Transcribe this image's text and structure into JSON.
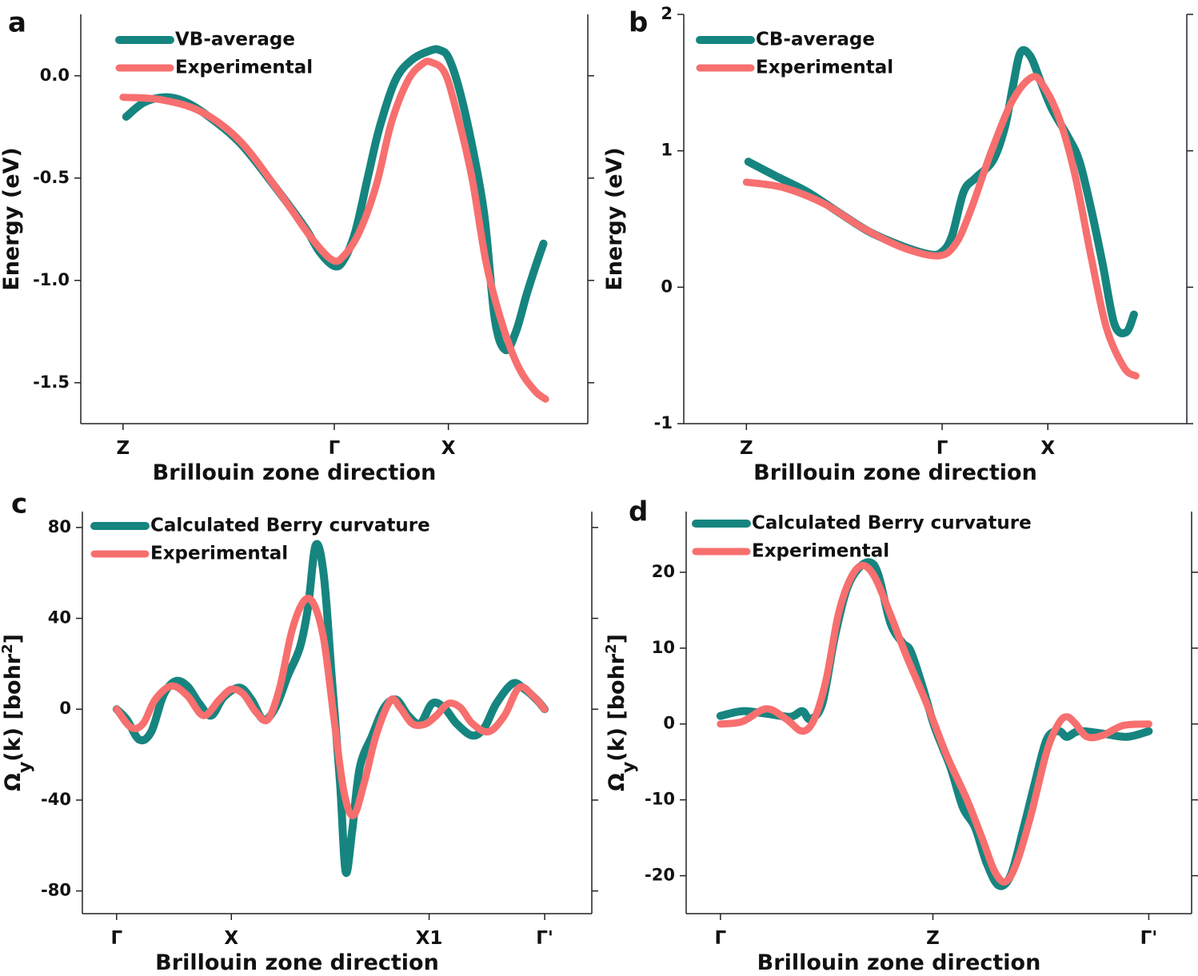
{
  "chart_data": [
    {
      "type": "line",
      "label": "a",
      "xlabel": "Brillouin zone direction",
      "ylabel": "Energy (eV)",
      "xlim": [
        -0.2,
        2.2
      ],
      "ylim": [
        -1.7,
        0.3
      ],
      "xticks": [
        {
          "value": 0,
          "label": "Z"
        },
        {
          "value": 1,
          "label": "Γ"
        },
        {
          "value": 1.54,
          "label": "X"
        }
      ],
      "yticks": [
        -1.5,
        {
          "value": -1.0,
          "label": "-1.0"
        },
        -0.5,
        {
          "value": 0.0,
          "label": "0.0"
        }
      ],
      "legend": "upper left",
      "series": [
        {
          "name": "VB-average",
          "color": "#16857f",
          "x": [
            0.015,
            0.1,
            0.2,
            0.29,
            0.4,
            0.555,
            0.71,
            0.86,
            0.93,
            1.0,
            1.045,
            1.1,
            1.16,
            1.215,
            1.29,
            1.37,
            1.46,
            1.5,
            1.54,
            1.59,
            1.65,
            1.71,
            1.76,
            1.81,
            1.86,
            1.91,
            1.95,
            1.99
          ],
          "values": [
            -0.2,
            -0.13,
            -0.105,
            -0.125,
            -0.195,
            -0.33,
            -0.53,
            -0.74,
            -0.86,
            -0.93,
            -0.9,
            -0.76,
            -0.49,
            -0.25,
            -0.02,
            0.08,
            0.125,
            0.125,
            0.09,
            -0.06,
            -0.33,
            -0.68,
            -1.19,
            -1.34,
            -1.25,
            -1.07,
            -0.94,
            -0.82
          ]
        },
        {
          "name": "Experimental",
          "color": "#f76f6f",
          "x": [
            0,
            0.18,
            0.37,
            0.555,
            0.74,
            0.89,
            0.99,
            1.045,
            1.12,
            1.2,
            1.27,
            1.35,
            1.42,
            1.46,
            1.52,
            1.57,
            1.65,
            1.72,
            1.8,
            1.875,
            1.95,
            2.0
          ],
          "values": [
            -0.105,
            -0.117,
            -0.176,
            -0.32,
            -0.57,
            -0.79,
            -0.9,
            -0.88,
            -0.76,
            -0.53,
            -0.23,
            -0.02,
            0.06,
            0.066,
            0.02,
            -0.14,
            -0.49,
            -0.92,
            -1.23,
            -1.43,
            -1.54,
            -1.58
          ]
        }
      ]
    },
    {
      "type": "line",
      "label": "b",
      "xlabel": "Brillouin zone direction",
      "ylabel": "Energy (eV)",
      "xlim": [
        -0.32,
        2.25
      ],
      "ylim": [
        -1,
        2
      ],
      "xticks": [
        {
          "value": 0,
          "label": "Z"
        },
        {
          "value": 1,
          "label": "Γ"
        },
        {
          "value": 1.54,
          "label": "X"
        }
      ],
      "yticks": [
        -1,
        0,
        1,
        2
      ],
      "legend": "upper left",
      "series": [
        {
          "name": "CB-average",
          "color": "#16857f",
          "x": [
            0.01,
            0.15,
            0.31,
            0.47,
            0.63,
            0.8,
            0.94,
            1.0,
            1.05,
            1.11,
            1.17,
            1.26,
            1.32,
            1.36,
            1.4,
            1.45,
            1.5,
            1.56,
            1.64,
            1.7,
            1.76,
            1.82,
            1.88,
            1.94,
            1.98
          ],
          "values": [
            0.92,
            0.815,
            0.7,
            0.55,
            0.405,
            0.3,
            0.24,
            0.26,
            0.375,
            0.7,
            0.8,
            0.93,
            1.17,
            1.46,
            1.72,
            1.695,
            1.52,
            1.31,
            1.11,
            0.93,
            0.58,
            0.17,
            -0.27,
            -0.33,
            -0.2
          ]
        },
        {
          "name": "Experimental",
          "color": "#f76f6f",
          "x": [
            0,
            0.19,
            0.4,
            0.6,
            0.8,
            0.98,
            1.07,
            1.15,
            1.25,
            1.36,
            1.46,
            1.52,
            1.6,
            1.68,
            1.76,
            1.84,
            1.93,
            1.99
          ],
          "values": [
            0.77,
            0.73,
            0.61,
            0.43,
            0.29,
            0.23,
            0.32,
            0.58,
            0.99,
            1.37,
            1.54,
            1.47,
            1.23,
            0.815,
            0.23,
            -0.3,
            -0.59,
            -0.65
          ]
        }
      ]
    },
    {
      "type": "line",
      "label": "c",
      "xlabel": "Brillouin zone direction",
      "ylabel": [
        "Ω",
        "y",
        "(k) [bohr",
        "2",
        "]"
      ],
      "xlim": [
        -0.08,
        1.11
      ],
      "ylim": [
        -90,
        87
      ],
      "xticks": [
        {
          "value": 0,
          "label": "Γ"
        },
        {
          "value": 0.268,
          "label": "X"
        },
        {
          "value": 0.73,
          "label": "X1"
        },
        {
          "value": 1,
          "label": "Γ'"
        }
      ],
      "yticks": [
        -80,
        -40,
        0,
        40,
        80
      ],
      "legend": "upper left",
      "series": [
        {
          "name": "Calculated Berry curvature",
          "color": "#16857f",
          "x": [
            0,
            0.024,
            0.053,
            0.081,
            0.109,
            0.137,
            0.165,
            0.193,
            0.221,
            0.25,
            0.287,
            0.315,
            0.343,
            0.371,
            0.4,
            0.428,
            0.447,
            0.465,
            0.484,
            0.503,
            0.522,
            0.535,
            0.55,
            0.568,
            0.597,
            0.625,
            0.653,
            0.681,
            0.709,
            0.737,
            0.765,
            0.794,
            0.831,
            0.859,
            0.887,
            0.925,
            0.953,
            0.981,
            1.0
          ],
          "values": [
            0,
            -4.6,
            -13.4,
            -9.9,
            6.0,
            12.3,
            10.2,
            2.5,
            -2.8,
            5.3,
            9.5,
            4.2,
            -4.6,
            0.7,
            14.8,
            27.1,
            44.7,
            72.2,
            58.8,
            13.0,
            -32.7,
            -71.5,
            -53.9,
            -25.7,
            -11.6,
            0.7,
            4.2,
            -2.8,
            -6.3,
            2.5,
            0.7,
            -6.3,
            -11.6,
            -8.1,
            2.5,
            11.3,
            8.8,
            4.2,
            0
          ]
        },
        {
          "name": "Experimental",
          "color": "#f76f6f",
          "x": [
            0,
            0.034,
            0.062,
            0.09,
            0.128,
            0.165,
            0.203,
            0.24,
            0.268,
            0.296,
            0.325,
            0.353,
            0.381,
            0.409,
            0.437,
            0.46,
            0.484,
            0.508,
            0.531,
            0.553,
            0.578,
            0.606,
            0.64,
            0.662,
            0.69,
            0.719,
            0.747,
            0.775,
            0.803,
            0.831,
            0.869,
            0.906,
            0.94,
            0.972,
            1.0
          ],
          "values": [
            0,
            -8.1,
            -6.3,
            4.2,
            10.2,
            6.0,
            -2.8,
            4.2,
            8.8,
            6.7,
            -1.1,
            -4.6,
            9.5,
            34.2,
            47.5,
            46.5,
            30.6,
            -4.6,
            -36.3,
            -46.8,
            -32.7,
            -11.6,
            3.9,
            0.7,
            -6.3,
            -6.7,
            -2.8,
            2.5,
            0.7,
            -6.3,
            -9.9,
            -2.8,
            9.5,
            6.0,
            0
          ]
        }
      ]
    },
    {
      "type": "line",
      "label": "d",
      "xlabel": "Brillouin zone direction",
      "ylabel": [
        "Ω",
        "y",
        "(k) [bohr",
        "2",
        "]"
      ],
      "xlim": [
        -0.08,
        1.1
      ],
      "ylim": [
        -25,
        28
      ],
      "xticks": [
        {
          "value": 0,
          "label": "Γ"
        },
        {
          "value": 0.496,
          "label": "Z"
        },
        {
          "value": 1,
          "label": "Γ'"
        }
      ],
      "yticks": [
        -20,
        -10,
        0,
        10,
        20
      ],
      "legend": "upper left",
      "series": [
        {
          "name": "Calculated Berry curvature",
          "color": "#16857f",
          "x": [
            0,
            0.051,
            0.107,
            0.163,
            0.191,
            0.21,
            0.238,
            0.266,
            0.294,
            0.322,
            0.35,
            0.369,
            0.397,
            0.425,
            0.444,
            0.472,
            0.5,
            0.537,
            0.566,
            0.594,
            0.622,
            0.65,
            0.678,
            0.706,
            0.734,
            0.762,
            0.79,
            0.809,
            0.837,
            0.893,
            0.949,
            1.0
          ],
          "values": [
            1.06,
            1.69,
            1.37,
            0.95,
            1.69,
            0.63,
            2.75,
            11.2,
            17.6,
            20.5,
            21.3,
            19.6,
            13.3,
            10.7,
            9.6,
            4.9,
            -0.4,
            -5.7,
            -11.0,
            -13.6,
            -18.4,
            -21.3,
            -19.9,
            -14.1,
            -7.8,
            -2.0,
            -0.95,
            -1.69,
            -0.95,
            -1.27,
            -1.69,
            -0.95
          ]
        },
        {
          "name": "Experimental",
          "color": "#f76f6f",
          "x": [
            0,
            0.051,
            0.107,
            0.154,
            0.191,
            0.219,
            0.247,
            0.275,
            0.303,
            0.331,
            0.36,
            0.397,
            0.434,
            0.481,
            0.528,
            0.575,
            0.612,
            0.64,
            0.665,
            0.691,
            0.725,
            0.762,
            0.79,
            0.809,
            0.828,
            0.856,
            0.893,
            0.94,
            1.0
          ],
          "values": [
            0,
            0.32,
            2.0,
            0.63,
            -0.95,
            0.63,
            5.9,
            14.4,
            19.1,
            20.9,
            19.4,
            14.4,
            9.0,
            2.75,
            -4.1,
            -9.9,
            -15.2,
            -19.4,
            -20.8,
            -18.4,
            -12.0,
            -3.6,
            0.1,
            0.95,
            0.1,
            -1.69,
            -1.48,
            -0.2,
            0
          ]
        }
      ]
    }
  ]
}
